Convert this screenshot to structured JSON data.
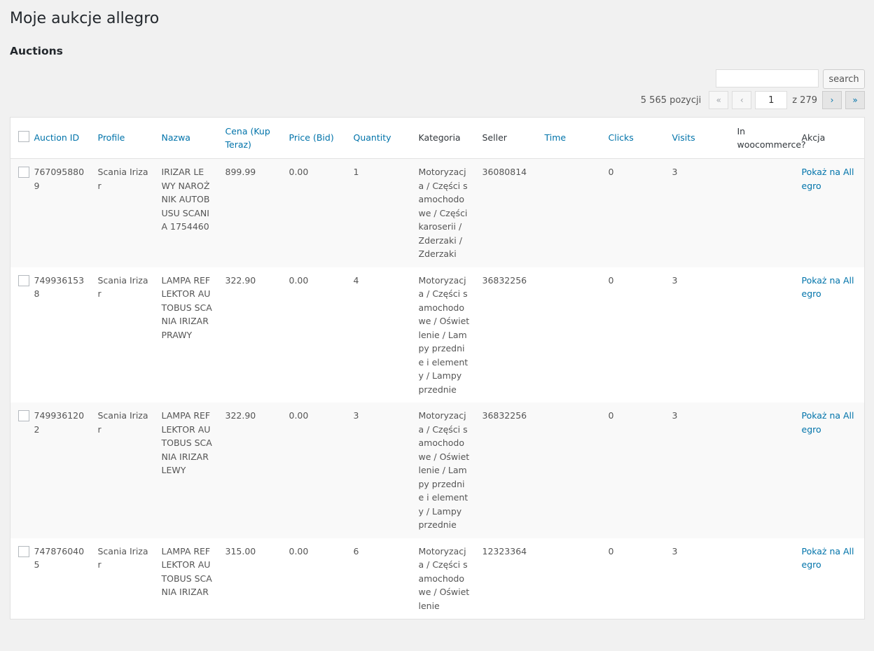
{
  "page_title": "Moje aukcje allegro",
  "section_title": "Auctions",
  "search": {
    "value": "",
    "button_label": "search"
  },
  "pagination": {
    "count": "5 565 pozycji",
    "first": "«",
    "prev": "‹",
    "current_page": "1",
    "of_label": "z 279",
    "next": "›",
    "last": "»"
  },
  "columns": [
    {
      "label": "Auction ID",
      "sortable": true
    },
    {
      "label": "Profile",
      "sortable": true
    },
    {
      "label": "Nazwa",
      "sortable": true
    },
    {
      "label": "Cena (Kup Teraz)",
      "sortable": true
    },
    {
      "label": "Price (Bid)",
      "sortable": true
    },
    {
      "label": "Quantity",
      "sortable": true
    },
    {
      "label": "Kategoria",
      "sortable": false
    },
    {
      "label": "Seller",
      "sortable": false
    },
    {
      "label": "Time",
      "sortable": true
    },
    {
      "label": "Clicks",
      "sortable": true
    },
    {
      "label": "Visits",
      "sortable": true
    },
    {
      "label": "In woocommerce?",
      "sortable": false
    },
    {
      "label": "Akcja",
      "sortable": false
    }
  ],
  "rows": [
    {
      "id": "7670958809",
      "profile": "Scania Irizar",
      "name": "IRIZAR LEWY NAROŻNIK AUTOBUSU SCANIA 1754460",
      "price_buy": "899.99",
      "price_bid": "0.00",
      "quantity": "1",
      "category": "Motoryzacja / Części samochodowe / Części karoserii / Zderzaki / Zderzaki",
      "seller": "36080814",
      "time": "",
      "clicks": "0",
      "visits": "3",
      "in_woo": "",
      "action": "Pokaż na Allegro"
    },
    {
      "id": "7499361538",
      "profile": "Scania Irizar",
      "name": "LAMPA REFLEKTOR AUTOBUS SCANIA IRIZAR PRAWY",
      "price_buy": "322.90",
      "price_bid": "0.00",
      "quantity": "4",
      "category": "Motoryzacja / Części samochodowe / Oświetlenie / Lampy przednie i elementy / Lampy przednie",
      "seller": "36832256",
      "time": "",
      "clicks": "0",
      "visits": "3",
      "in_woo": "",
      "action": "Pokaż na Allegro"
    },
    {
      "id": "7499361202",
      "profile": "Scania Irizar",
      "name": "LAMPA REFLEKTOR AUTOBUS SCANIA IRIZAR LEWY",
      "price_buy": "322.90",
      "price_bid": "0.00",
      "quantity": "3",
      "category": "Motoryzacja / Części samochodowe / Oświetlenie / Lampy przednie i elementy / Lampy przednie",
      "seller": "36832256",
      "time": "",
      "clicks": "0",
      "visits": "3",
      "in_woo": "",
      "action": "Pokaż na Allegro"
    },
    {
      "id": "7478760405",
      "profile": "Scania Irizar",
      "name": "LAMPA REFLEKTOR AUTOBUS SCANIA IRIZAR",
      "price_buy": "315.00",
      "price_bid": "0.00",
      "quantity": "6",
      "category": "Motoryzacja / Części samochodowe / Oświetlenie",
      "seller": "12323364",
      "time": "",
      "clicks": "0",
      "visits": "3",
      "in_woo": "",
      "action": "Pokaż na Allegro"
    }
  ],
  "colors": {
    "link": "#0073aa",
    "background": "#f1f1f1",
    "row_alt": "#f9f9f9"
  }
}
